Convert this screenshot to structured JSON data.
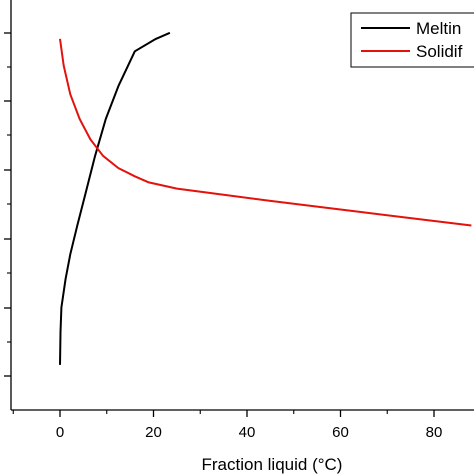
{
  "chart_data": {
    "type": "line",
    "xlabel": "Fraction liquid (°C)",
    "xlim": [
      -10,
      88
    ],
    "ylim": [
      0,
      1
    ],
    "x_ticks": [
      0,
      20,
      40,
      60,
      80
    ],
    "x_tick_labels": [
      "0",
      "20",
      "40",
      "60",
      "80"
    ],
    "legend_position": "top-right",
    "grid": false,
    "series": [
      {
        "name": "Meltin",
        "color": "#000000",
        "points": [
          [
            0.0,
            0.11
          ],
          [
            0.1,
            0.19
          ],
          [
            0.3,
            0.25
          ],
          [
            1.2,
            0.32
          ],
          [
            2.2,
            0.38
          ],
          [
            3.7,
            0.45
          ],
          [
            5.5,
            0.53
          ],
          [
            7.5,
            0.62
          ],
          [
            9.8,
            0.71
          ],
          [
            12.5,
            0.79
          ],
          [
            16.0,
            0.875
          ],
          [
            20.5,
            0.905
          ],
          [
            23.5,
            0.92
          ]
        ]
      },
      {
        "name": "Solidif",
        "color": "#e3120b",
        "points": [
          [
            0.0,
            0.905
          ],
          [
            0.8,
            0.84
          ],
          [
            2.2,
            0.77
          ],
          [
            4.2,
            0.71
          ],
          [
            6.5,
            0.66
          ],
          [
            9.2,
            0.62
          ],
          [
            12.5,
            0.59
          ],
          [
            16.0,
            0.57
          ],
          [
            19.0,
            0.555
          ],
          [
            25.0,
            0.54
          ],
          [
            35.0,
            0.525
          ],
          [
            45.0,
            0.51
          ],
          [
            55.0,
            0.496
          ],
          [
            65.0,
            0.482
          ],
          [
            75.0,
            0.468
          ],
          [
            88.0,
            0.45
          ]
        ]
      }
    ]
  }
}
